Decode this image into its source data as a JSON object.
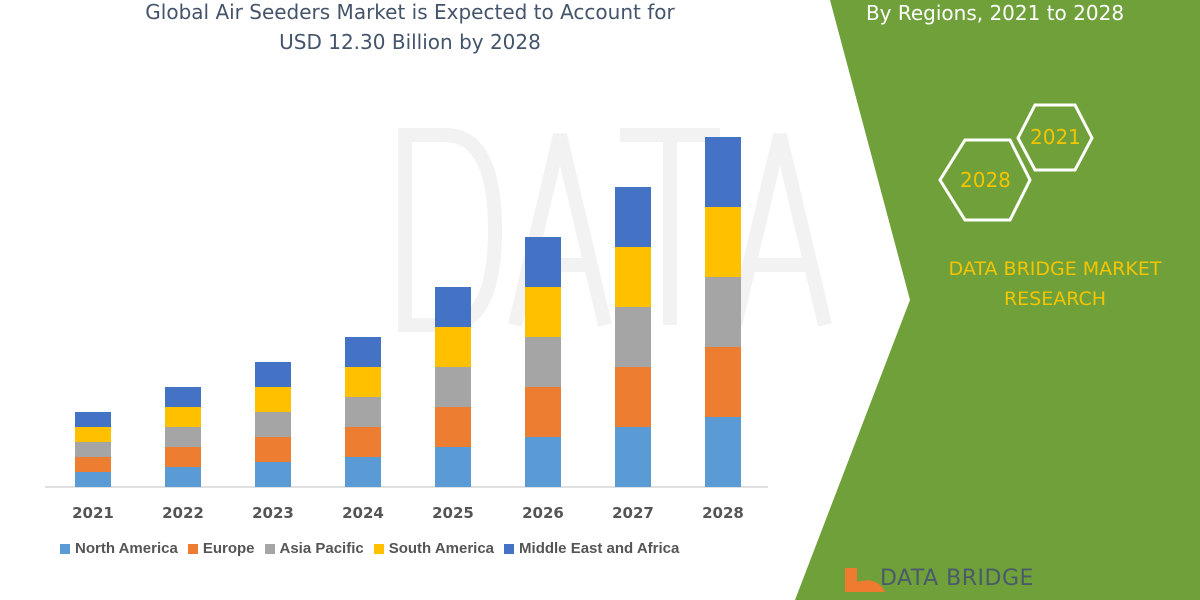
{
  "title_line1": "Global Air Seeders Market is Expected to Account for",
  "title_line2": "USD 12.30 Billion by 2028",
  "side_panel": {
    "heading": "By Regions, 2021 to 2028",
    "hex_2021": "2021",
    "hex_2028": "2028",
    "brand_line1": "DATA BRIDGE MARKET",
    "brand_line2": "RESEARCH",
    "logo_text": "DATA BRIDGE",
    "panel_color": "#70a03a",
    "accent_color": "#f5c400"
  },
  "watermark": "DATA BRIDGE",
  "chart_data": {
    "type": "bar",
    "stacked": true,
    "categories": [
      "2021",
      "2022",
      "2023",
      "2024",
      "2025",
      "2026",
      "2027",
      "2028"
    ],
    "series": [
      {
        "name": "North America",
        "color": "#5b9bd5",
        "values": [
          1.5,
          2,
          2.5,
          3,
          4,
          5,
          6,
          7
        ]
      },
      {
        "name": "Europe",
        "color": "#ed7d31",
        "values": [
          1.5,
          2,
          2.5,
          3,
          4,
          5,
          6,
          7
        ]
      },
      {
        "name": "Asia Pacific",
        "color": "#a5a5a5",
        "values": [
          1.5,
          2,
          2.5,
          3,
          4,
          5,
          6,
          7
        ]
      },
      {
        "name": "South America",
        "color": "#ffc000",
        "values": [
          1.5,
          2,
          2.5,
          3,
          4,
          5,
          6,
          7
        ]
      },
      {
        "name": "Middle East and Africa",
        "color": "#4472c4",
        "values": [
          1.5,
          2,
          2.5,
          3,
          4,
          5,
          6,
          7
        ]
      }
    ],
    "legend_position": "bottom",
    "grid": false,
    "y_axis_shown": false
  }
}
